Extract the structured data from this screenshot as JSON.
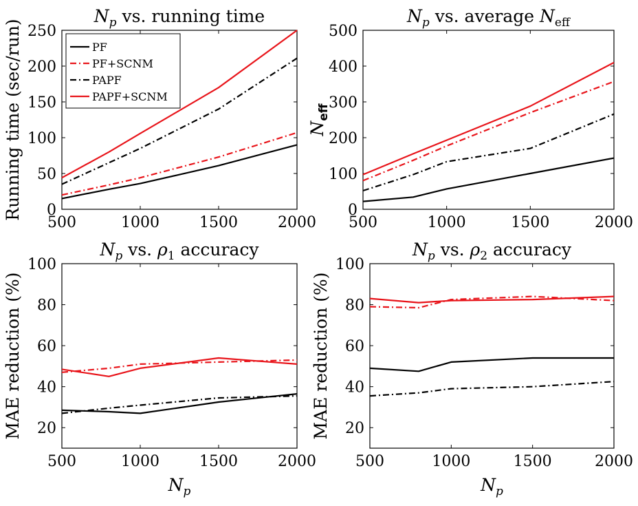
{
  "chart_data": [
    {
      "type": "line",
      "title": "N_p vs. running time",
      "title_parts": {
        "lead": "N",
        "lead_sub": "p",
        "rest": " vs. running time"
      },
      "xlabel": "",
      "ylabel": "Running time (sec/run)",
      "xlim": [
        500,
        2000
      ],
      "ylim": [
        0,
        250
      ],
      "xticks": [
        500,
        1000,
        1500,
        2000
      ],
      "yticks": [
        0,
        50,
        100,
        150,
        200,
        250
      ],
      "legend": {
        "placement": "top-left",
        "entries": [
          "PF",
          "PF+SCNM",
          "PAPF",
          "PAPF+SCNM"
        ]
      },
      "x": [
        500,
        800,
        1000,
        1500,
        2000
      ],
      "series": [
        {
          "name": "PF",
          "color": "#000000",
          "dash": "solid",
          "values": [
            15,
            28,
            36,
            61,
            90
          ]
        },
        {
          "name": "PF+SCNM",
          "color": "#e8141a",
          "dash": "dashdot",
          "values": [
            20,
            34,
            44,
            73,
            107
          ]
        },
        {
          "name": "PAPF",
          "color": "#000000",
          "dash": "dashdot",
          "values": [
            35,
            65,
            85,
            140,
            211
          ]
        },
        {
          "name": "PAPF+SCNM",
          "color": "#e8141a",
          "dash": "solid",
          "values": [
            44,
            80,
            106,
            170,
            250
          ]
        }
      ]
    },
    {
      "type": "line",
      "title": "N_p vs. average N_eff",
      "title_parts": {
        "lead": "N",
        "lead_sub": "p",
        "rest": " vs. average ",
        "tail": "N",
        "tail_sub": "eff"
      },
      "xlabel": "",
      "ylabel": "N_eff",
      "ylabel_parts": {
        "main": "N",
        "sub": "eff"
      },
      "xlim": [
        500,
        2000
      ],
      "ylim": [
        0,
        500
      ],
      "xticks": [
        500,
        1000,
        1500,
        2000
      ],
      "yticks": [
        0,
        100,
        200,
        300,
        400,
        500
      ],
      "x": [
        500,
        800,
        1000,
        1500,
        2000
      ],
      "series": [
        {
          "name": "PF",
          "color": "#000000",
          "dash": "solid",
          "values": [
            22,
            34,
            57,
            100,
            143
          ]
        },
        {
          "name": "PF+SCNM",
          "color": "#e8141a",
          "dash": "dashdot",
          "values": [
            80,
            137,
            177,
            270,
            357
          ]
        },
        {
          "name": "PAPF",
          "color": "#000000",
          "dash": "dashdot",
          "values": [
            52,
            97,
            133,
            170,
            266
          ]
        },
        {
          "name": "PAPF+SCNM",
          "color": "#e8141a",
          "dash": "solid",
          "values": [
            97,
            155,
            193,
            288,
            410
          ]
        }
      ]
    },
    {
      "type": "line",
      "title": "N_p vs. ρ1 accuracy",
      "title_parts": {
        "lead": "N",
        "lead_sub": "p",
        "rest": " vs. ",
        "tail": "ρ",
        "tail_sub": "1",
        "rest2": " accuracy"
      },
      "xlabel": "N_p",
      "xlabel_parts": {
        "main": "N",
        "sub": "p"
      },
      "ylabel": "MAE reduction (%)",
      "xlim": [
        500,
        2000
      ],
      "ylim": [
        10,
        100
      ],
      "xticks": [
        500,
        1000,
        1500,
        2000
      ],
      "yticks": [
        20,
        40,
        60,
        80,
        100
      ],
      "x": [
        500,
        800,
        1000,
        1500,
        2000
      ],
      "series": [
        {
          "name": "PF",
          "color": "#000000",
          "dash": "solid",
          "values": [
            28.5,
            27.8,
            27,
            32.5,
            36.5
          ]
        },
        {
          "name": "PF+SCNM",
          "color": "#e8141a",
          "dash": "dashdot",
          "values": [
            47,
            49,
            51,
            52,
            53
          ]
        },
        {
          "name": "PAPF",
          "color": "#000000",
          "dash": "dashdot",
          "values": [
            27,
            29.5,
            31,
            34.5,
            35.5
          ]
        },
        {
          "name": "PAPF+SCNM",
          "color": "#e8141a",
          "dash": "solid",
          "values": [
            48.5,
            45,
            49,
            54,
            51
          ]
        }
      ]
    },
    {
      "type": "line",
      "title": "N_p vs. ρ2 accuracy",
      "title_parts": {
        "lead": "N",
        "lead_sub": "p",
        "rest": " vs. ",
        "tail": "ρ",
        "tail_sub": "2",
        "rest2": " accuracy"
      },
      "xlabel": "N_p",
      "xlabel_parts": {
        "main": "N",
        "sub": "p"
      },
      "ylabel": "MAE reduction (%)",
      "xlim": [
        500,
        2000
      ],
      "ylim": [
        10,
        100
      ],
      "xticks": [
        500,
        1000,
        1500,
        2000
      ],
      "yticks": [
        20,
        40,
        60,
        80,
        100
      ],
      "x": [
        500,
        800,
        1000,
        1500,
        2000
      ],
      "series": [
        {
          "name": "PF",
          "color": "#000000",
          "dash": "solid",
          "values": [
            49,
            47.5,
            52,
            54,
            54
          ]
        },
        {
          "name": "PF+SCNM",
          "color": "#e8141a",
          "dash": "dashdot",
          "values": [
            79,
            78.5,
            82.5,
            84,
            82
          ]
        },
        {
          "name": "PAPF",
          "color": "#000000",
          "dash": "dashdot",
          "values": [
            35.5,
            37,
            39,
            40,
            42.5
          ]
        },
        {
          "name": "PAPF+SCNM",
          "color": "#e8141a",
          "dash": "solid",
          "values": [
            83,
            81,
            82,
            82.5,
            84
          ]
        }
      ]
    }
  ]
}
